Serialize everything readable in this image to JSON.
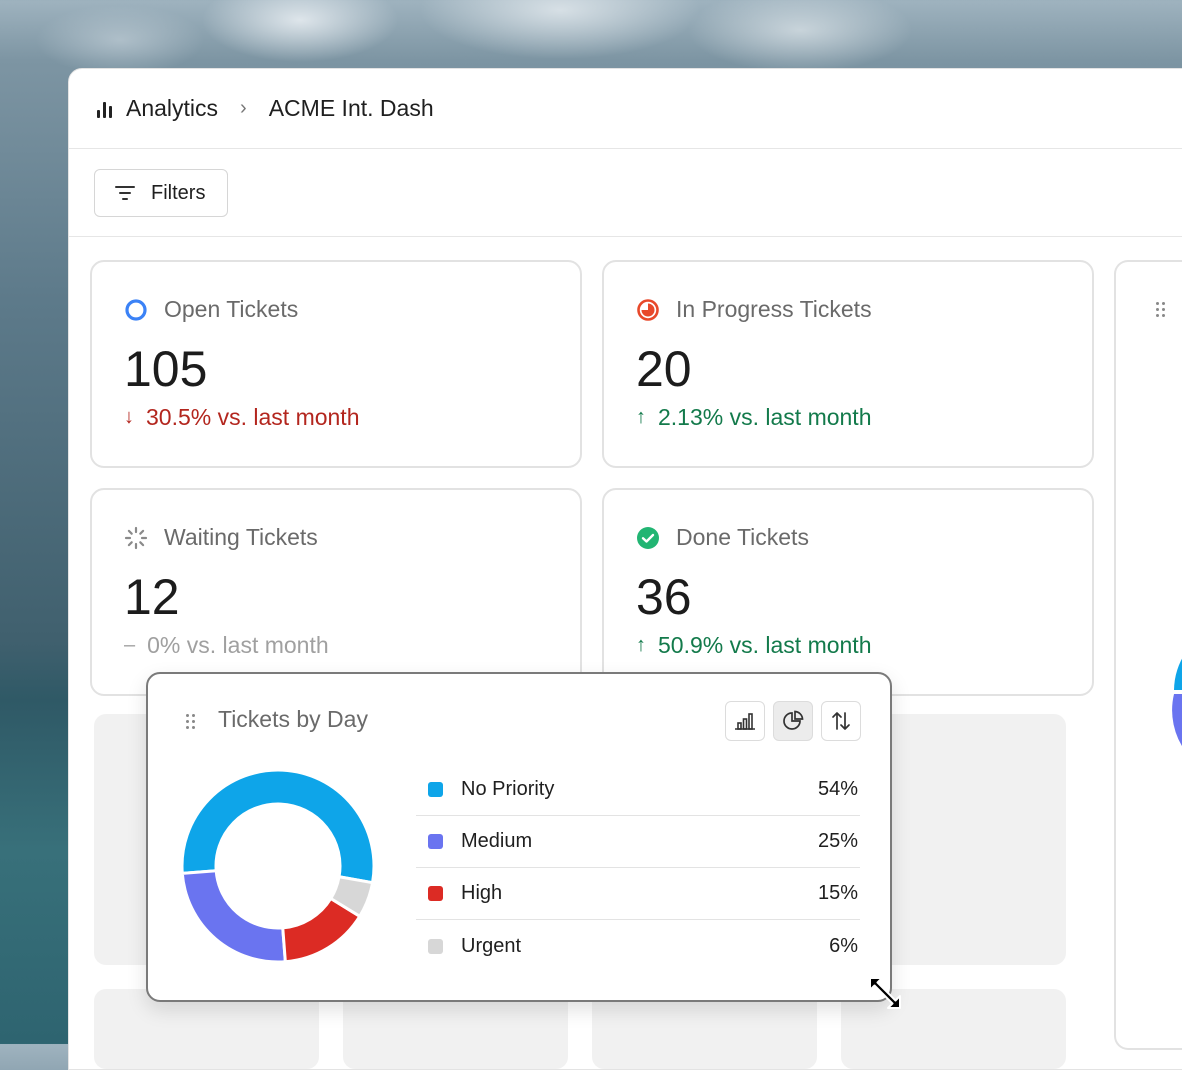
{
  "breadcrumb": {
    "root": "Analytics",
    "current": "ACME Int. Dash",
    "icon": "bar-chart-icon"
  },
  "toolbar": {
    "filters_label": "Filters",
    "icon": "filter-icon"
  },
  "cards": [
    {
      "title": "Open Tickets",
      "value": "105",
      "delta": "30.5% vs. last month",
      "trend": "down",
      "icon": "open-circle-icon",
      "color": "#b3261e"
    },
    {
      "title": "In Progress Tickets",
      "value": "20",
      "delta": "2.13% vs. last month",
      "trend": "up",
      "icon": "in-progress-icon",
      "color": "#137a4b"
    },
    {
      "title": "Waiting Tickets",
      "value": "12",
      "delta": "0% vs. last month",
      "trend": "flat",
      "icon": "loading-spinner-icon",
      "color": "#a0a0a0"
    },
    {
      "title": "Done Tickets",
      "value": "36",
      "delta": "50.9% vs. last month",
      "trend": "up",
      "icon": "check-circle-icon",
      "color": "#137a4b"
    }
  ],
  "widget": {
    "title": "Tickets by Day",
    "buttons": [
      "bar-chart-icon",
      "pie-chart-icon",
      "sort-icon"
    ],
    "active_button": "pie-chart-icon"
  },
  "chart_data": {
    "type": "pie",
    "categories": [
      "No Priority",
      "Medium",
      "High",
      "Urgent"
    ],
    "values": [
      54,
      25,
      15,
      6
    ],
    "labels": [
      "54%",
      "25%",
      "15%",
      "6%"
    ],
    "colors": [
      "#0ea5e9",
      "#6a74f0",
      "#dc2b24",
      "#d7d7d7"
    ]
  }
}
